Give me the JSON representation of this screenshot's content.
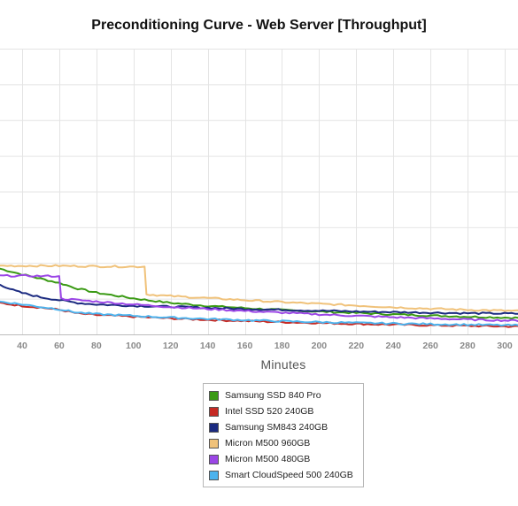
{
  "chart_data": {
    "type": "line",
    "title": "Preconditioning Curve - Web Server [Throughput]",
    "xlabel": "Minutes",
    "ylabel": "",
    "x_ticks": [
      40,
      60,
      80,
      100,
      120,
      140,
      160,
      180,
      200,
      220,
      240,
      260,
      280,
      300
    ],
    "xlim": [
      28,
      315
    ],
    "ylim": [
      0,
      100
    ],
    "grid": true,
    "legend_position": "bottom-center",
    "series": [
      {
        "name": "Samsung SSD 840 Pro",
        "color": "#3a9a14",
        "points": [
          [
            28,
            23
          ],
          [
            40,
            21
          ],
          [
            50,
            19.5
          ],
          [
            60,
            18
          ],
          [
            70,
            16
          ],
          [
            80,
            14.6
          ],
          [
            90,
            13.6
          ],
          [
            100,
            12.6
          ],
          [
            110,
            11.8
          ],
          [
            120,
            11
          ],
          [
            140,
            10
          ],
          [
            160,
            9.2
          ],
          [
            180,
            8.5
          ],
          [
            200,
            8
          ],
          [
            220,
            7.5
          ],
          [
            240,
            7
          ],
          [
            260,
            6.6
          ],
          [
            280,
            6.2
          ],
          [
            300,
            5.9
          ],
          [
            315,
            5.7
          ]
        ]
      },
      {
        "name": "Intel SSD 520 240GB",
        "color": "#c62a24",
        "points": [
          [
            28,
            11
          ],
          [
            40,
            10
          ],
          [
            50,
            9.4
          ],
          [
            60,
            8.6
          ],
          [
            65,
            8
          ],
          [
            70,
            7.3
          ],
          [
            80,
            6.8
          ],
          [
            100,
            6.2
          ],
          [
            120,
            5.6
          ],
          [
            140,
            5.1
          ],
          [
            160,
            4.7
          ],
          [
            180,
            4.3
          ],
          [
            200,
            4
          ],
          [
            220,
            3.7
          ],
          [
            240,
            3.4
          ],
          [
            260,
            3.2
          ],
          [
            280,
            3
          ],
          [
            300,
            2.8
          ],
          [
            315,
            2.7
          ]
        ]
      },
      {
        "name": "Samsung SM843 240GB",
        "color": "#1b2a80",
        "points": [
          [
            28,
            17.5
          ],
          [
            35,
            15.5
          ],
          [
            40,
            14.5
          ],
          [
            50,
            13
          ],
          [
            60,
            12
          ],
          [
            70,
            11
          ],
          [
            80,
            10.5
          ],
          [
            100,
            10
          ],
          [
            120,
            9.7
          ],
          [
            140,
            9.3
          ],
          [
            160,
            8.9
          ],
          [
            180,
            8.6
          ],
          [
            200,
            8.3
          ],
          [
            220,
            8
          ],
          [
            240,
            7.8
          ],
          [
            260,
            7.6
          ],
          [
            280,
            7.4
          ],
          [
            300,
            7.3
          ],
          [
            315,
            7.2
          ]
        ]
      },
      {
        "name": "Micron M500 960GB",
        "color": "#f0c27a",
        "points": [
          [
            28,
            24
          ],
          [
            40,
            24
          ],
          [
            60,
            24
          ],
          [
            80,
            23.8
          ],
          [
            100,
            23.7
          ],
          [
            106,
            23.7
          ],
          [
            107,
            14
          ],
          [
            120,
            13.4
          ],
          [
            140,
            12.7
          ],
          [
            160,
            12
          ],
          [
            180,
            11.3
          ],
          [
            200,
            10.7
          ],
          [
            220,
            10.1
          ],
          [
            240,
            9.5
          ],
          [
            260,
            9
          ],
          [
            280,
            8.6
          ],
          [
            300,
            8.3
          ],
          [
            315,
            8.1
          ]
        ]
      },
      {
        "name": "Micron M500 480GB",
        "color": "#9b46e6",
        "points": [
          [
            28,
            20.5
          ],
          [
            40,
            20.5
          ],
          [
            50,
            20.4
          ],
          [
            60,
            20.4
          ],
          [
            61,
            12.5
          ],
          [
            80,
            11.5
          ],
          [
            100,
            10.5
          ],
          [
            120,
            9.6
          ],
          [
            140,
            8.9
          ],
          [
            160,
            8.2
          ],
          [
            180,
            7.6
          ],
          [
            200,
            7
          ],
          [
            220,
            6.5
          ],
          [
            240,
            6
          ],
          [
            260,
            5.6
          ],
          [
            280,
            5.2
          ],
          [
            300,
            4.9
          ],
          [
            315,
            4.7
          ]
        ]
      },
      {
        "name": "Smart CloudSpeed 500 240GB",
        "color": "#4bb3ee",
        "points": [
          [
            28,
            11.5
          ],
          [
            40,
            10.5
          ],
          [
            50,
            9.6
          ],
          [
            60,
            8.8
          ],
          [
            65,
            8.2
          ],
          [
            70,
            7.6
          ],
          [
            80,
            7.1
          ],
          [
            100,
            6.5
          ],
          [
            120,
            5.9
          ],
          [
            140,
            5.4
          ],
          [
            160,
            5
          ],
          [
            180,
            4.6
          ],
          [
            200,
            4.3
          ],
          [
            220,
            4
          ],
          [
            240,
            3.8
          ],
          [
            260,
            3.6
          ],
          [
            280,
            3.4
          ],
          [
            300,
            3.2
          ],
          [
            315,
            3.1
          ]
        ]
      }
    ]
  }
}
